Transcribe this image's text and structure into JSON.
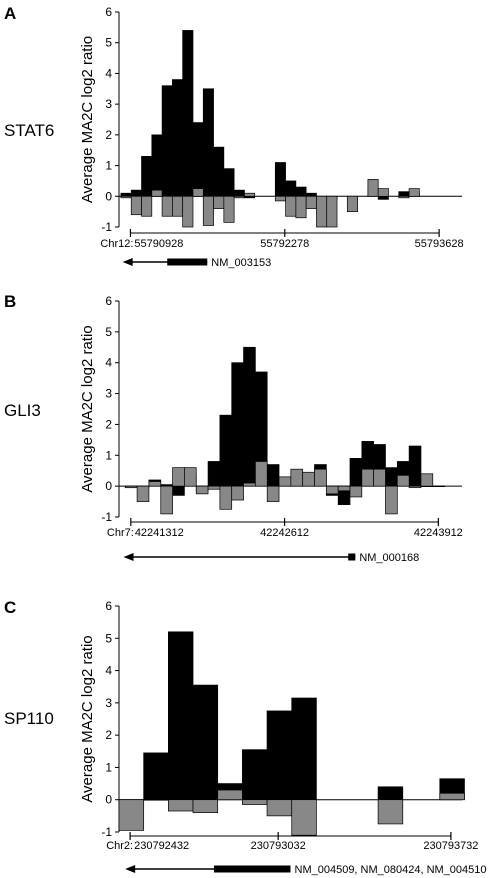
{
  "chart_data": [
    {
      "type": "bar",
      "panel_letter": "A",
      "gene": "STAT6",
      "ylabel": "Average MA2C log2 ratio",
      "ylim": [
        -1,
        6
      ],
      "yticks": [
        -1,
        0,
        1,
        2,
        3,
        4,
        5,
        6
      ],
      "chrom_label": "Chr12:",
      "xlim": [
        55790828,
        55793828
      ],
      "xticks": [
        55790928,
        55792278,
        55793628
      ],
      "xtick_labels": [
        "55790928",
        "55792278",
        "55793628"
      ],
      "gene_label": "NM_003153",
      "gene_model": {
        "line_start": 55790860,
        "line_end": 55791600,
        "box_start": 55791250,
        "box_end": 55791600,
        "direction": "reverse"
      },
      "bin_width": 90,
      "series": [
        {
          "name": "",
          "color": "#000000",
          "x": [
            55790890,
            55790980,
            55791070,
            55791160,
            55791250,
            55791340,
            55791430,
            55791520,
            55791610,
            55791700,
            55791790,
            55791880,
            55791970,
            55792240,
            55792330,
            55792420,
            55792510,
            55792600,
            55792690,
            55792870,
            55793050,
            55793140,
            55793320,
            55793410
          ],
          "values": [
            0.1,
            0.2,
            1.3,
            2.0,
            3.6,
            3.8,
            5.4,
            2.4,
            3.5,
            1.6,
            0.9,
            0.2,
            -0.05,
            1.1,
            0.5,
            0.3,
            0.1,
            -0.1,
            -0.1,
            -0.35,
            0.3,
            -0.1,
            0.15,
            0.1
          ]
        },
        {
          "name": "",
          "color": "#888888",
          "x": [
            55790890,
            55790980,
            55791070,
            55791160,
            55791250,
            55791340,
            55791430,
            55791520,
            55791610,
            55791700,
            55791790,
            55791880,
            55791970,
            55792240,
            55792330,
            55792420,
            55792510,
            55792600,
            55792690,
            55792870,
            55793050,
            55793140,
            55793320,
            55793410
          ],
          "values": [
            -0.05,
            -0.6,
            -0.65,
            0.2,
            -0.65,
            -0.65,
            -1.0,
            0.25,
            -0.95,
            -0.4,
            -0.85,
            -0.05,
            0.1,
            -0.15,
            -0.65,
            -0.7,
            -0.4,
            -1.0,
            -1.0,
            -0.5,
            0.55,
            0.25,
            -0.05,
            0.25
          ]
        }
      ]
    },
    {
      "type": "bar",
      "panel_letter": "B",
      "gene": "GLI3",
      "ylabel": "Average MA2C log2 ratio",
      "ylim": [
        -1,
        6
      ],
      "yticks": [
        -1,
        0,
        1,
        2,
        3,
        4,
        5,
        6
      ],
      "chrom_label": "Chr7:",
      "xlim": [
        42241212,
        42244112
      ],
      "xticks": [
        42241312,
        42242612,
        42243912
      ],
      "xtick_labels": [
        "42241312",
        "42242612",
        "42243912"
      ],
      "gene_label": "NM_000168",
      "gene_model": {
        "line_start": 42241250,
        "line_end": 42243210,
        "box_start": 42243150,
        "box_end": 42243210,
        "direction": "reverse"
      },
      "bin_width": 100,
      "series": [
        {
          "name": "",
          "color": "#000000",
          "x": [
            42241315,
            42241415,
            42241515,
            42241615,
            42241715,
            42241815,
            42241915,
            42242015,
            42242115,
            42242215,
            42242315,
            42242415,
            42242515,
            42242615,
            42242715,
            42242815,
            42242915,
            42243015,
            42243115,
            42243215,
            42243315,
            42243415,
            42243515,
            42243615,
            42243715,
            42243815,
            42243915
          ],
          "values": [
            -0.05,
            -0.05,
            0.2,
            0.05,
            -0.3,
            0.4,
            -0.15,
            0.8,
            2.3,
            4.0,
            4.5,
            3.7,
            0.7,
            0.3,
            0.3,
            0.35,
            0.7,
            -0.3,
            -0.6,
            0.9,
            1.45,
            1.35,
            0.6,
            0.8,
            1.3,
            0.0,
            0.0
          ]
        },
        {
          "name": "",
          "color": "#888888",
          "x": [
            42241315,
            42241415,
            42241515,
            42241615,
            42241715,
            42241815,
            42241915,
            42242015,
            42242115,
            42242215,
            42242315,
            42242415,
            42242515,
            42242615,
            42242715,
            42242815,
            42242915,
            42243015,
            42243115,
            42243215,
            42243315,
            42243415,
            42243515,
            42243615,
            42243715,
            42243815,
            42243915
          ],
          "values": [
            -0.05,
            -0.5,
            0.15,
            -0.9,
            0.6,
            0.6,
            -0.25,
            -0.1,
            -0.75,
            -0.45,
            0.1,
            0.8,
            -0.5,
            0.3,
            0.55,
            0.45,
            0.55,
            -0.25,
            -0.15,
            -0.35,
            0.55,
            0.55,
            -0.9,
            0.35,
            -0.05,
            0.4,
            0.0
          ]
        }
      ]
    },
    {
      "type": "bar",
      "panel_letter": "C",
      "gene": "SP110",
      "ylabel": "Average MA2C log2 ratio",
      "ylim": [
        -1,
        6
      ],
      "yticks": [
        -1,
        0,
        1,
        2,
        3,
        4,
        5,
        6
      ],
      "chrom_label": "Chr2:",
      "xlim": [
        230792387,
        230793777
      ],
      "xticks": [
        230792432,
        230793032,
        230793732
      ],
      "xtick_labels": [
        "230792432",
        "230793032",
        "230793732"
      ],
      "gene_label": "NM_004509, NM_080424, NM_004510",
      "gene_model": {
        "line_start": 230792412,
        "line_end": 230793082,
        "box_start": 230792772,
        "box_end": 230793082,
        "direction": "reverse"
      },
      "bin_width": 100,
      "series": [
        {
          "name": "",
          "color": "#000000",
          "x": [
            230792437,
            230792537,
            230792637,
            230792737,
            230792837,
            230792937,
            230793037,
            230793137,
            230793487,
            230793737
          ],
          "values": [
            -0.2,
            1.45,
            5.2,
            3.55,
            0.5,
            1.55,
            2.75,
            3.15,
            0.4,
            0.65
          ]
        },
        {
          "name": "",
          "color": "#888888",
          "x": [
            230792437,
            230792537,
            230792637,
            230792737,
            230792837,
            230792937,
            230793037,
            230793137,
            230793487,
            230793737
          ],
          "values": [
            -0.95,
            0.0,
            -0.35,
            -0.4,
            0.3,
            -0.15,
            -0.5,
            -1.1,
            -0.75,
            0.2
          ]
        }
      ]
    }
  ]
}
